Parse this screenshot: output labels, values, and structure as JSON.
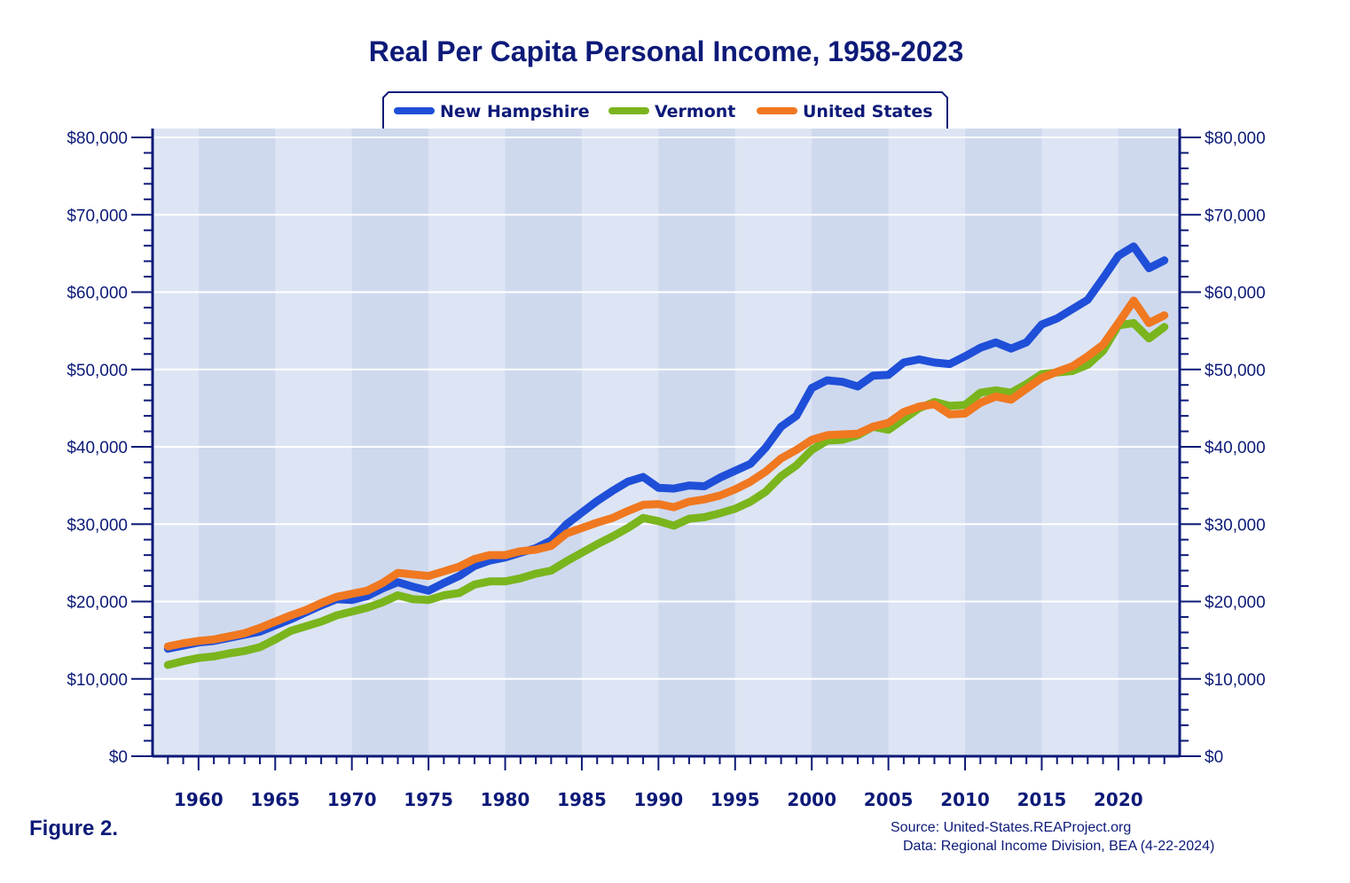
{
  "chart_data": {
    "type": "line",
    "title": "Real Per Capita Personal Income, 1958-2023",
    "x": [
      1958,
      1959,
      1960,
      1961,
      1962,
      1963,
      1964,
      1965,
      1966,
      1967,
      1968,
      1969,
      1970,
      1971,
      1972,
      1973,
      1974,
      1975,
      1976,
      1977,
      1978,
      1979,
      1980,
      1981,
      1982,
      1983,
      1984,
      1985,
      1986,
      1987,
      1988,
      1989,
      1990,
      1991,
      1992,
      1993,
      1994,
      1995,
      1996,
      1997,
      1998,
      1999,
      2000,
      2001,
      2002,
      2003,
      2004,
      2005,
      2006,
      2007,
      2008,
      2009,
      2010,
      2011,
      2012,
      2013,
      2014,
      2015,
      2016,
      2017,
      2018,
      2019,
      2020,
      2021,
      2022,
      2023
    ],
    "series": [
      {
        "name": "New Hampshire",
        "color": "#1f4fd8",
        "values": [
          13900,
          14300,
          14700,
          14900,
          15300,
          15700,
          16100,
          16900,
          17700,
          18600,
          19500,
          20300,
          20200,
          20700,
          21700,
          22500,
          21900,
          21400,
          22400,
          23300,
          24600,
          25300,
          25700,
          26300,
          26900,
          27900,
          30000,
          31500,
          33000,
          34300,
          35500,
          36100,
          34700,
          34600,
          35000,
          34900,
          36000,
          36900,
          37800,
          39900,
          42600,
          44000,
          47600,
          48600,
          48400,
          47800,
          49200,
          49300,
          50900,
          51300,
          50900,
          50700,
          51700,
          52800,
          53500,
          52700,
          53500,
          55800,
          56600,
          57800,
          59000,
          61800,
          64700,
          65900,
          63100,
          64100
        ]
      },
      {
        "name": "Vermont",
        "color": "#7ab51d",
        "values": [
          11800,
          12300,
          12700,
          12900,
          13300,
          13600,
          14100,
          15100,
          16200,
          16800,
          17400,
          18200,
          18700,
          19200,
          19900,
          20800,
          20300,
          20200,
          20800,
          21100,
          22200,
          22600,
          22600,
          23000,
          23600,
          24000,
          25200,
          26300,
          27400,
          28400,
          29500,
          30800,
          30400,
          29800,
          30700,
          30900,
          31400,
          32000,
          32900,
          34200,
          36200,
          37600,
          39600,
          40800,
          40900,
          41500,
          42600,
          42200,
          43600,
          45000,
          45800,
          45300,
          45400,
          47000,
          47300,
          47000,
          48100,
          49400,
          49600,
          49800,
          50600,
          52400,
          55700,
          56000,
          54000,
          55500
        ]
      },
      {
        "name": "United States",
        "color": "#f07820",
        "values": [
          14200,
          14600,
          14900,
          15100,
          15500,
          15900,
          16600,
          17400,
          18200,
          18900,
          19800,
          20600,
          21000,
          21400,
          22400,
          23700,
          23500,
          23300,
          23900,
          24500,
          25500,
          26000,
          26000,
          26500,
          26700,
          27200,
          28800,
          29500,
          30200,
          30800,
          31700,
          32500,
          32600,
          32200,
          32900,
          33200,
          33700,
          34500,
          35500,
          36800,
          38500,
          39600,
          40900,
          41500,
          41600,
          41700,
          42600,
          43100,
          44500,
          45200,
          45500,
          44200,
          44300,
          45700,
          46500,
          46100,
          47500,
          48900,
          49700,
          50400,
          51700,
          53200,
          56000,
          58900,
          56000,
          57000
        ]
      }
    ],
    "y_axis": {
      "min": 0,
      "max": 80000,
      "step": 10000,
      "tick_labels": [
        "$0",
        "$10,000",
        "$20,000",
        "$30,000",
        "$40,000",
        "$50,000",
        "$60,000",
        "$70,000",
        "$80,000"
      ]
    },
    "x_axis": {
      "min": 1957,
      "max": 2024,
      "tick_labels": [
        "1960",
        "1965",
        "1970",
        "1975",
        "1980",
        "1985",
        "1990",
        "1995",
        "2000",
        "2005",
        "2010",
        "2015",
        "2020"
      ]
    },
    "legend_position": "top-center",
    "grid": true,
    "colors": {
      "text": "#0d1a78",
      "plot_band_dark": "#cfd9ee",
      "plot_band_light": "#dde5f4",
      "gridline": "#ffffff",
      "axis": "#0d1a78"
    }
  },
  "figure_label": "Figure 2.",
  "source": "Source: United-States.REAProject.org",
  "data_note": "Data: Regional Income Division, BEA (4-22-2024)"
}
